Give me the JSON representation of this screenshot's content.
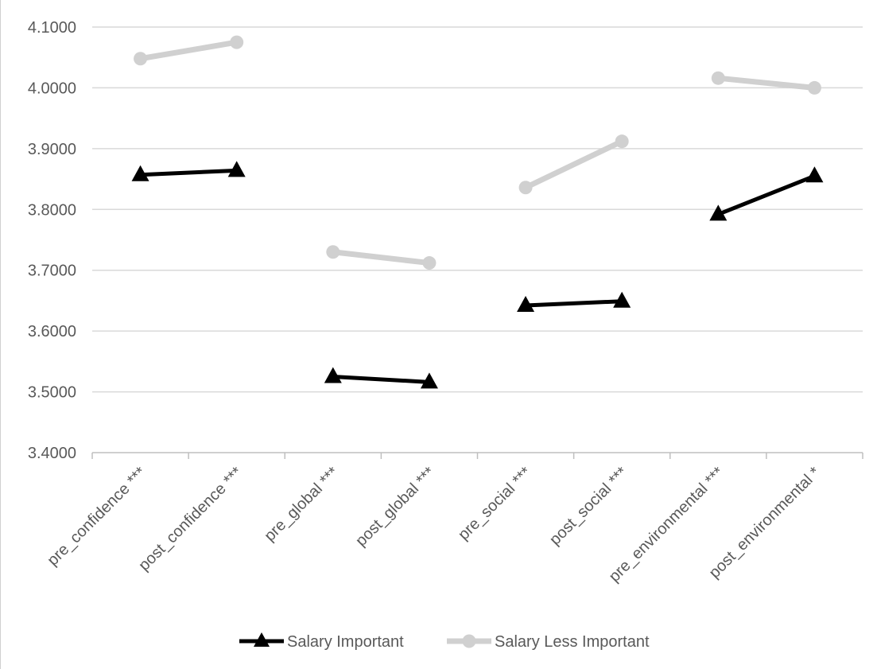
{
  "chart_data": {
    "type": "line",
    "categories": [
      "pre_confidence ***",
      "post_confidence ***",
      "pre_global ***",
      "post_global ***",
      "pre_social ***",
      "post_social ***",
      "pre_environmental ***",
      "post_environmental *"
    ],
    "segments": [
      [
        0,
        1
      ],
      [
        2,
        3
      ],
      [
        4,
        5
      ],
      [
        6,
        7
      ]
    ],
    "series": [
      {
        "name": "Salary Important",
        "marker": "triangle",
        "color": "#000000",
        "values": [
          3.857,
          3.864,
          3.525,
          3.516,
          3.642,
          3.649,
          3.792,
          3.855
        ]
      },
      {
        "name": "Salary Less Important",
        "marker": "circle",
        "color": "#d0d0d0",
        "values": [
          4.048,
          4.075,
          3.73,
          3.712,
          3.836,
          3.912,
          4.016,
          4.0
        ]
      }
    ],
    "ylim": [
      3.4,
      4.1
    ],
    "yticks": [
      "3.4000",
      "3.5000",
      "3.6000",
      "3.7000",
      "3.8000",
      "3.9000",
      "4.0000",
      "4.1000"
    ],
    "ytick_values": [
      3.4,
      3.5,
      3.6,
      3.7,
      3.8,
      3.9,
      4.0,
      4.1
    ],
    "grid": true,
    "legend_position": "bottom",
    "title": "",
    "xlabel": "",
    "ylabel": ""
  }
}
